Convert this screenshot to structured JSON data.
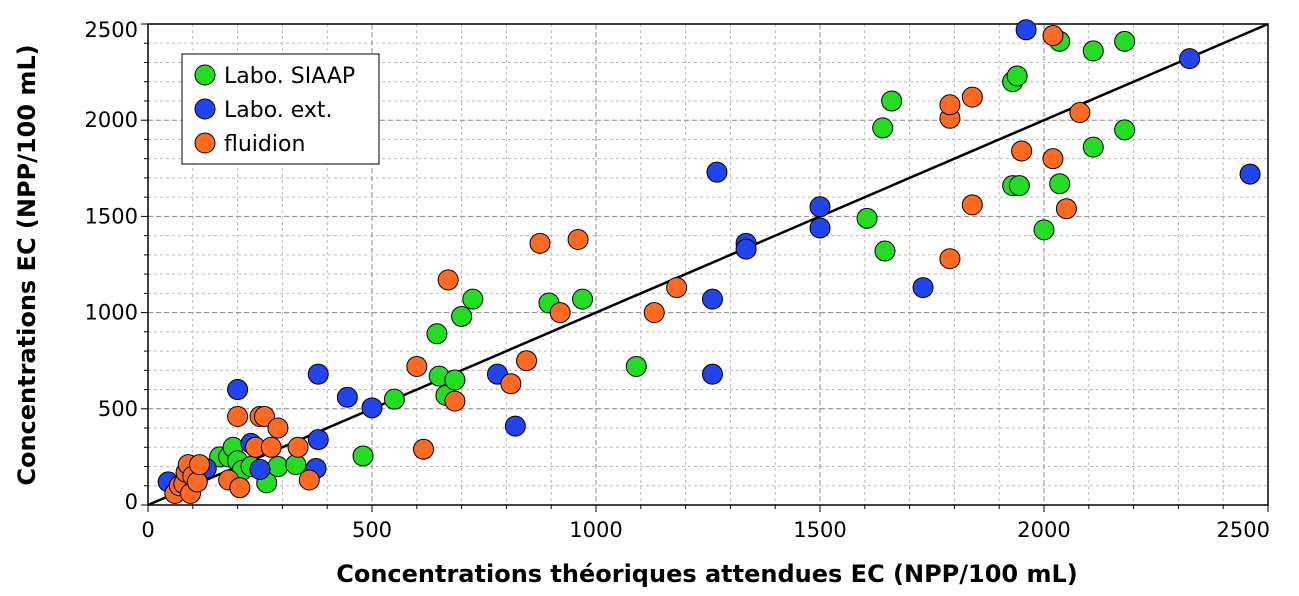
{
  "chart_data": {
    "type": "scatter",
    "title": "",
    "xlabel": "Concentrations théoriques attendues EC (NPP/100 mL)",
    "ylabel": "Concentrations EC (NPP/100 mL)",
    "xlim": [
      0,
      2500
    ],
    "ylim": [
      0,
      2500
    ],
    "x_ticks": [
      "0",
      "500",
      "1000",
      "1500",
      "2000",
      "2500"
    ],
    "y_ticks": [
      "0",
      "500",
      "1000",
      "1500",
      "2000",
      "2500"
    ],
    "grid": true,
    "legend_position": "top-left",
    "reference_line": {
      "x": [
        0,
        2500
      ],
      "y": [
        0,
        2500
      ]
    },
    "series": [
      {
        "name": "Labo. SIAAP",
        "color": "#22dd22",
        "points": [
          [
            100,
            140
          ],
          [
            120,
            180
          ],
          [
            160,
            250
          ],
          [
            180,
            250
          ],
          [
            190,
            300
          ],
          [
            200,
            230
          ],
          [
            210,
            180
          ],
          [
            230,
            200
          ],
          [
            265,
            115
          ],
          [
            290,
            200
          ],
          [
            330,
            210
          ],
          [
            480,
            255
          ],
          [
            550,
            550
          ],
          [
            645,
            890
          ],
          [
            650,
            670
          ],
          [
            665,
            570
          ],
          [
            685,
            650
          ],
          [
            700,
            980
          ],
          [
            725,
            1070
          ],
          [
            895,
            1050
          ],
          [
            970,
            1070
          ],
          [
            1090,
            720
          ],
          [
            1605,
            1490
          ],
          [
            1640,
            1960
          ],
          [
            1645,
            1320
          ],
          [
            1660,
            2100
          ],
          [
            1930,
            2200
          ],
          [
            1930,
            1660
          ],
          [
            1940,
            2230
          ],
          [
            1945,
            1660
          ],
          [
            2000,
            1430
          ],
          [
            2035,
            1670
          ],
          [
            2035,
            2410
          ],
          [
            2110,
            2360
          ],
          [
            2110,
            1860
          ],
          [
            2180,
            2410
          ],
          [
            2180,
            1950
          ]
        ]
      },
      {
        "name": "Labo. ext.",
        "color": "#2244ee",
        "points": [
          [
            45,
            120
          ],
          [
            130,
            190
          ],
          [
            200,
            600
          ],
          [
            230,
            320
          ],
          [
            250,
            185
          ],
          [
            380,
            680
          ],
          [
            380,
            340
          ],
          [
            375,
            190
          ],
          [
            445,
            560
          ],
          [
            500,
            505
          ],
          [
            780,
            680
          ],
          [
            820,
            410
          ],
          [
            1260,
            1070
          ],
          [
            1260,
            680
          ],
          [
            1270,
            1730
          ],
          [
            1335,
            1360
          ],
          [
            1335,
            1330
          ],
          [
            1500,
            1550
          ],
          [
            1500,
            1440
          ],
          [
            1730,
            1130
          ],
          [
            1960,
            2470
          ],
          [
            2325,
            2320
          ],
          [
            2460,
            1720
          ]
        ]
      },
      {
        "name": "fluidion",
        "color": "#ff6a22",
        "points": [
          [
            60,
            60
          ],
          [
            70,
            100
          ],
          [
            80,
            110
          ],
          [
            85,
            170
          ],
          [
            90,
            210
          ],
          [
            95,
            60
          ],
          [
            100,
            150
          ],
          [
            110,
            120
          ],
          [
            115,
            210
          ],
          [
            180,
            130
          ],
          [
            200,
            460
          ],
          [
            205,
            90
          ],
          [
            240,
            300
          ],
          [
            250,
            460
          ],
          [
            260,
            460
          ],
          [
            275,
            300
          ],
          [
            290,
            400
          ],
          [
            335,
            300
          ],
          [
            360,
            130
          ],
          [
            600,
            720
          ],
          [
            615,
            290
          ],
          [
            670,
            1170
          ],
          [
            685,
            540
          ],
          [
            845,
            750
          ],
          [
            810,
            630
          ],
          [
            875,
            1360
          ],
          [
            920,
            1000
          ],
          [
            960,
            1380
          ],
          [
            1130,
            1000
          ],
          [
            1180,
            1130
          ],
          [
            1790,
            2010
          ],
          [
            1790,
            2080
          ],
          [
            1790,
            1280
          ],
          [
            1840,
            2120
          ],
          [
            1840,
            1560
          ],
          [
            1950,
            1840
          ],
          [
            2020,
            2440
          ],
          [
            2020,
            1800
          ],
          [
            2050,
            1540
          ],
          [
            2080,
            2040
          ]
        ]
      }
    ]
  }
}
